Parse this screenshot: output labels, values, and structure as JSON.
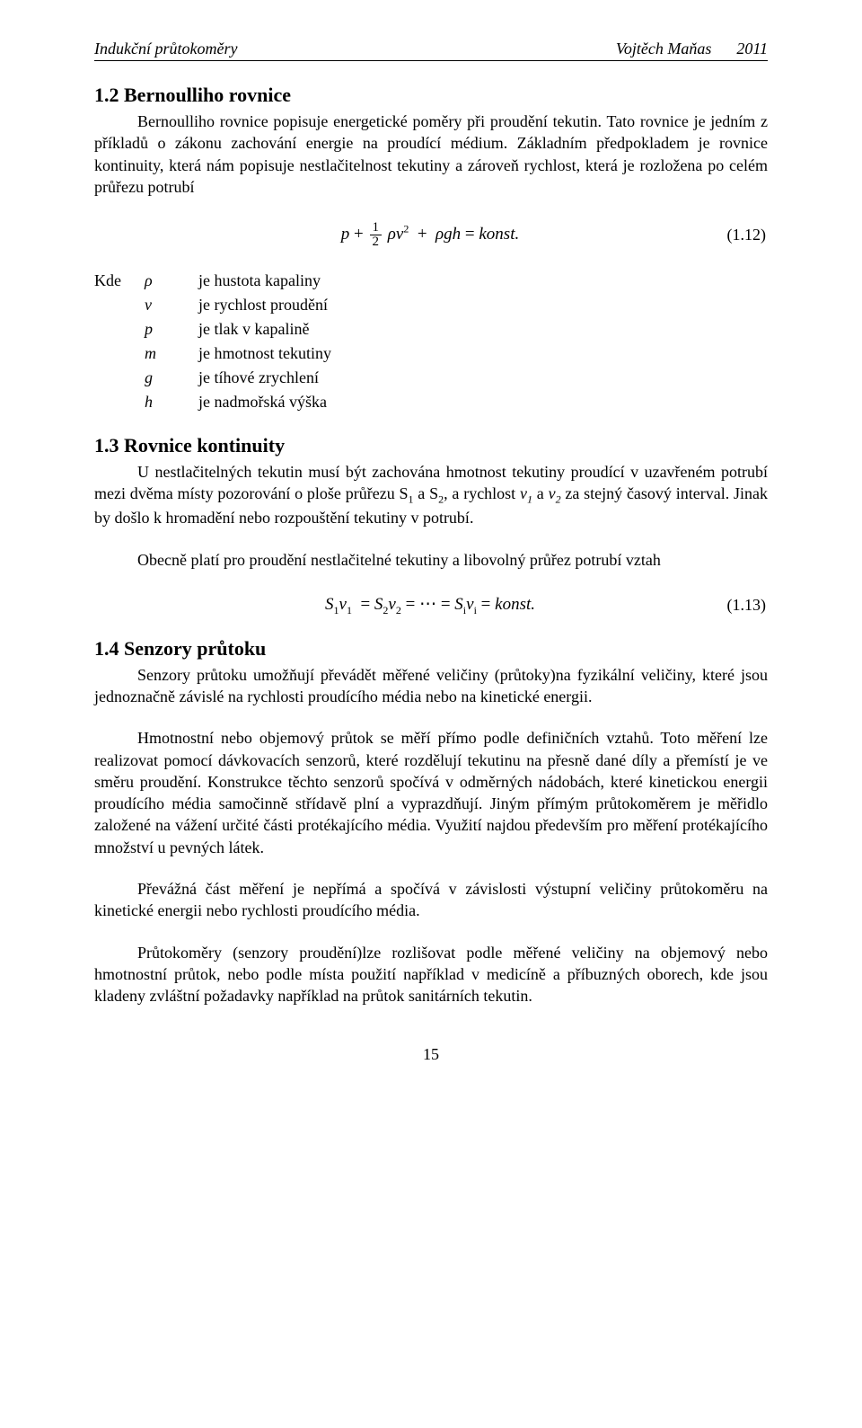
{
  "header": {
    "left": "Indukční průtokoměry",
    "author": "Vojtěch Maňas",
    "year": "2011"
  },
  "sections": {
    "s12": {
      "title": "1.2  Bernoulliho rovnice",
      "p1": "Bernoulliho rovnice popisuje energetické poměry při proudění tekutin. Tato rovnice je jedním z příkladů o zákonu zachování energie na proudící médium. Základním předpokladem je rovnice kontinuity, která nám popisuje nestlačitelnost tekutiny a zároveň rychlost, která je rozložena po celém průřezu potrubí",
      "eq_num": "(1.12)"
    },
    "where": {
      "lead": "Kde",
      "rows": [
        {
          "sym": "ρ",
          "desc": "je hustota kapaliny"
        },
        {
          "sym": "v",
          "desc": "je rychlost proudění"
        },
        {
          "sym": "p",
          "desc": "je tlak v kapalině"
        },
        {
          "sym": "m",
          "desc": "je hmotnost tekutiny"
        },
        {
          "sym": "g",
          "desc": "je tíhové zrychlení"
        },
        {
          "sym": "h",
          "desc": "je nadmořská výška"
        }
      ]
    },
    "s13": {
      "title": "1.3  Rovnice kontinuity",
      "p1": "U nestlačitelných tekutin musí být zachována hmotnost tekutiny proudící v uzavřeném potrubí mezi dvěma místy pozorování o ploše průřezu S₁ a S₂, a rychlost v₁ a v₂ za stejný časový interval. Jinak by došlo k hromadění nebo rozpouštění tekutiny v potrubí.",
      "p2": "Obecně platí pro proudění nestlačitelné tekutiny a libovolný průřez potrubí vztah",
      "eq_num": "(1.13)"
    },
    "s14": {
      "title": "1.4  Senzory průtoku",
      "p1": "Senzory průtoku umožňují převádět měřené veličiny (průtoky)na fyzikální veličiny, které jsou jednoznačně závislé na rychlosti proudícího média nebo na kinetické energii.",
      "p2": "Hmotnostní nebo objemový průtok se měří přímo podle definičních vztahů. Toto měření lze realizovat pomocí dávkovacích senzorů, které rozdělují tekutinu na přesně dané díly a přemístí je ve směru proudění. Konstrukce těchto senzorů spočívá v odměrných nádobách, které kinetickou energii proudícího média samočinně střídavě plní a vyprazdňují. Jiným přímým průtokoměrem je měřidlo založené na vážení určité části protékajícího média. Využití najdou především pro měření protékajícího množství u pevných látek.",
      "p3": "Převážná část měření je nepřímá a spočívá v závislosti výstupní veličiny průtokoměru na kinetické energii nebo rychlosti proudícího média.",
      "p4": "Průtokoměry (senzory proudění)lze rozlišovat podle měřené veličiny na objemový nebo hmotnostní průtok, nebo podle místa použití například v medicíně a příbuzných oborech, kde jsou kladeny zvláštní požadavky například na průtok sanitárních tekutin."
    }
  },
  "page_number": "15"
}
